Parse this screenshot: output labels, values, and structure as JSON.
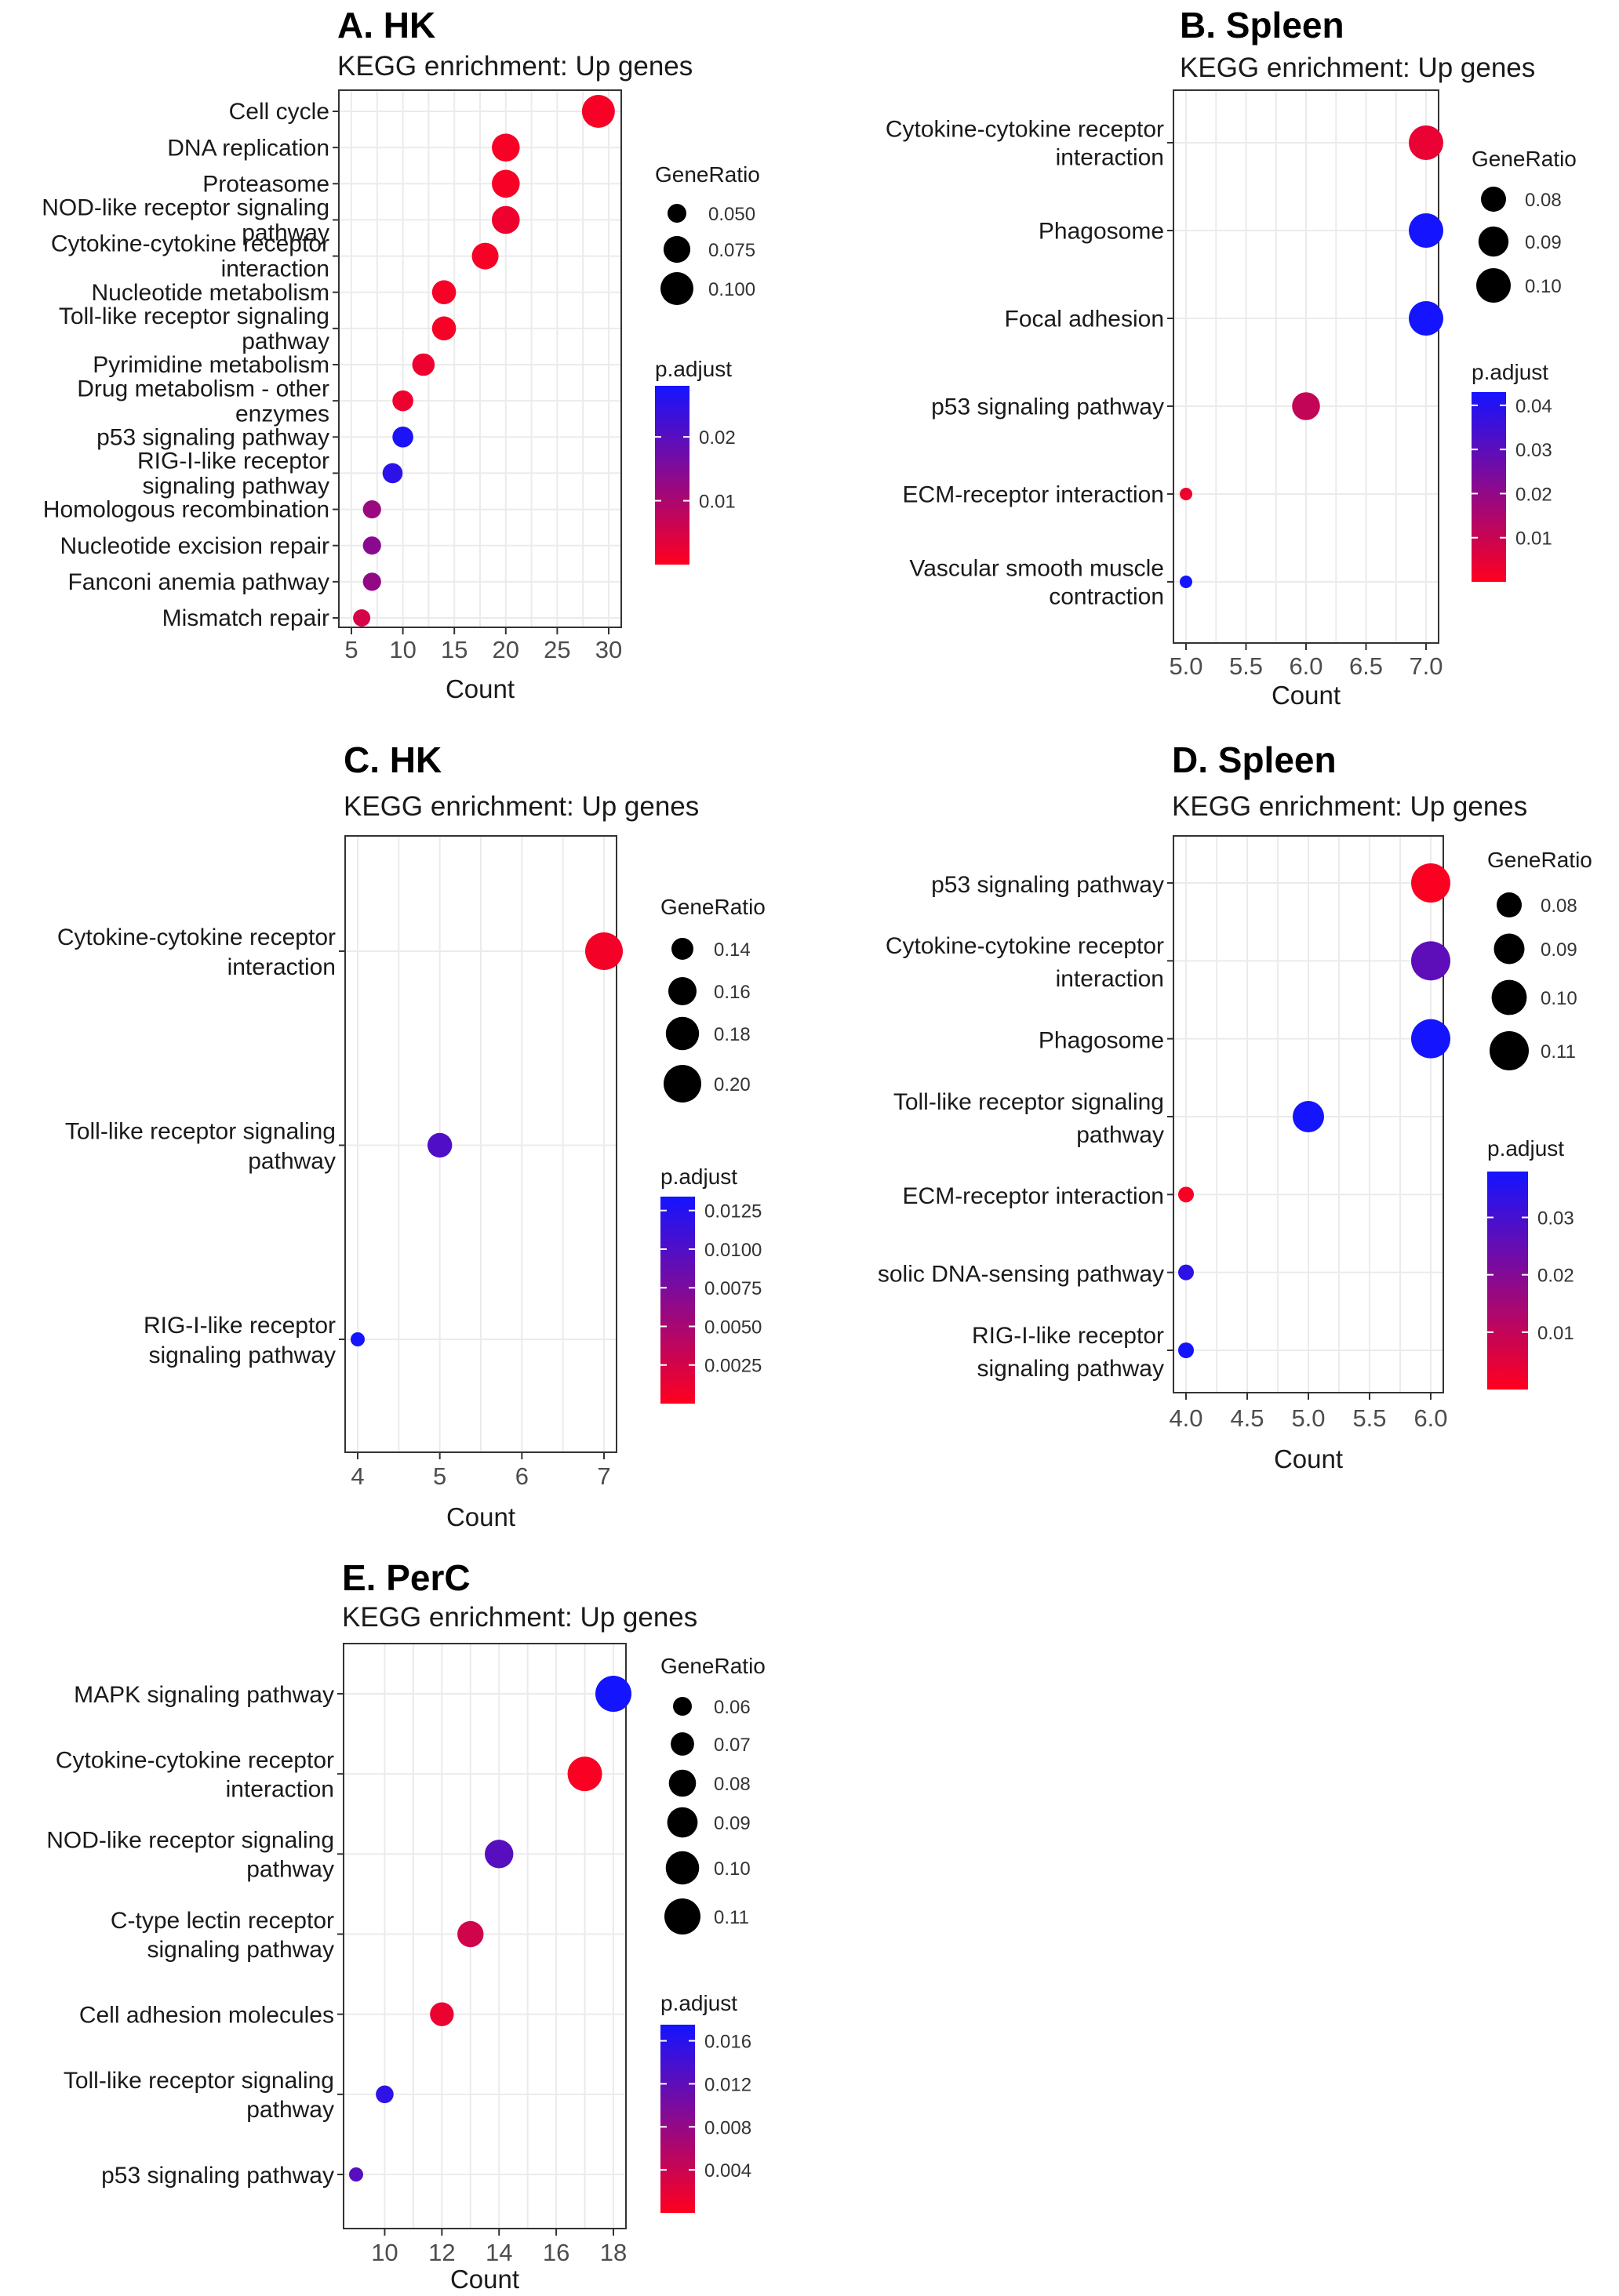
{
  "chart_data": [
    {
      "type": "scatter",
      "panel_label": "A. HK",
      "subtitle": "KEGG enrichment: Up genes",
      "xlabel": "Count",
      "xlim": [
        5,
        30
      ],
      "xticks": [
        "5",
        "10",
        "15",
        "20",
        "25",
        "30"
      ],
      "categories": [
        [
          "Cell cycle"
        ],
        [
          "DNA replication"
        ],
        [
          "Proteasome"
        ],
        [
          "NOD-like receptor signaling",
          "pathway"
        ],
        [
          "Cytokine-cytokine receptor",
          "interaction"
        ],
        [
          "Nucleotide metabolism"
        ],
        [
          "Toll-like receptor signaling",
          "pathway"
        ],
        [
          "Pyrimidine metabolism"
        ],
        [
          "Drug metabolism - other",
          "enzymes"
        ],
        [
          "p53 signaling pathway"
        ],
        [
          "RIG-I-like receptor",
          "signaling pathway"
        ],
        [
          "Homologous recombination"
        ],
        [
          "Nucleotide excision repair"
        ],
        [
          "Fanconi anemia pathway"
        ],
        [
          "Mismatch repair"
        ]
      ],
      "count": [
        29,
        20,
        20,
        20,
        18,
        14,
        14,
        12,
        10,
        10,
        9,
        7,
        7,
        7,
        6
      ],
      "gene_ratio": [
        0.115,
        0.08,
        0.08,
        0.08,
        0.072,
        0.056,
        0.056,
        0.048,
        0.04,
        0.04,
        0.036,
        0.028,
        0.028,
        0.028,
        0.024
      ],
      "p_adjust": [
        0.001,
        0.001,
        0.001,
        0.002,
        0.001,
        0.001,
        0.001,
        0.002,
        0.002,
        0.027,
        0.025,
        0.012,
        0.014,
        0.013,
        0.005
      ],
      "size_legend": {
        "title": "GeneRatio",
        "values": [
          0.05,
          0.075,
          0.1
        ],
        "labels": [
          "0.050",
          "0.075",
          "0.100"
        ]
      },
      "color_legend": {
        "title": "p.adjust",
        "range": [
          0.0,
          0.028
        ],
        "ticks": [
          0.01,
          0.02
        ],
        "labels": [
          "0.01",
          "0.02"
        ]
      }
    },
    {
      "type": "scatter",
      "panel_label": "B. Spleen",
      "subtitle": "KEGG enrichment: Up genes",
      "xlabel": "Count",
      "xlim": [
        5,
        7
      ],
      "xticks": [
        "5.0",
        "5.5",
        "6.0",
        "6.5",
        "7.0"
      ],
      "categories": [
        [
          "Cytokine-cytokine receptor",
          "interaction"
        ],
        [
          "Phagosome"
        ],
        [
          "Focal adhesion"
        ],
        [
          "p53 signaling pathway"
        ],
        [
          "ECM-receptor interaction"
        ],
        [
          "Vascular smooth muscle",
          "contraction"
        ]
      ],
      "count": [
        7,
        7,
        7,
        6,
        5,
        5
      ],
      "gene_ratio": [
        0.1,
        0.1,
        0.1,
        0.09,
        0.075,
        0.075
      ],
      "p_adjust": [
        0.004,
        0.043,
        0.043,
        0.011,
        0.003,
        0.044
      ],
      "size_legend": {
        "title": "GeneRatio",
        "values": [
          0.08,
          0.09,
          0.1
        ],
        "labels": [
          "0.08",
          "0.09",
          "0.10"
        ]
      },
      "color_legend": {
        "title": "p.adjust",
        "range": [
          0.0,
          0.043
        ],
        "ticks": [
          0.01,
          0.02,
          0.03,
          0.04
        ],
        "labels": [
          "0.01",
          "0.02",
          "0.03",
          "0.04"
        ]
      }
    },
    {
      "type": "scatter",
      "panel_label": "C. HK",
      "subtitle": "KEGG enrichment: Up genes",
      "xlabel": "Count",
      "xlim": [
        4,
        7
      ],
      "xticks": [
        "4",
        "5",
        "6",
        "7"
      ],
      "categories": [
        [
          "Cytokine-cytokine receptor",
          "interaction"
        ],
        [
          "Toll-like receptor signaling",
          "pathway"
        ],
        [
          "RIG-I-like receptor",
          "signaling pathway"
        ]
      ],
      "count": [
        7,
        5,
        4
      ],
      "gene_ratio": [
        0.21,
        0.15,
        0.12
      ],
      "p_adjust": [
        0.0006,
        0.01,
        0.0134
      ],
      "size_legend": {
        "title": "GeneRatio",
        "values": [
          0.14,
          0.16,
          0.18,
          0.2
        ],
        "labels": [
          "0.14",
          "0.16",
          "0.18",
          "0.20"
        ]
      },
      "color_legend": {
        "title": "p.adjust",
        "range": [
          0.0,
          0.0134
        ],
        "ticks": [
          0.0025,
          0.005,
          0.0075,
          0.01,
          0.0125
        ],
        "labels": [
          "0.0025",
          "0.0050",
          "0.0075",
          "0.0100",
          "0.0125"
        ]
      }
    },
    {
      "type": "scatter",
      "panel_label": "D. Spleen",
      "subtitle": "KEGG enrichment: Up genes",
      "xlabel": "Count",
      "xlim": [
        4,
        6
      ],
      "xticks": [
        "4.0",
        "4.5",
        "5.0",
        "5.5",
        "6.0"
      ],
      "categories": [
        [
          "p53 signaling pathway"
        ],
        [
          "Cytokine-cytokine receptor",
          "interaction"
        ],
        [
          "Phagosome"
        ],
        [
          "Toll-like receptor signaling",
          "pathway"
        ],
        [
          "ECM-receptor interaction"
        ],
        [
          "solic DNA-sensing pathway"
        ],
        [
          "RIG-I-like receptor",
          "signaling pathway"
        ]
      ],
      "count": [
        6,
        6,
        6,
        5,
        4,
        4,
        4
      ],
      "gene_ratio": [
        0.11,
        0.11,
        0.11,
        0.095,
        0.075,
        0.075,
        0.075
      ],
      "p_adjust": [
        0.0005,
        0.026,
        0.038,
        0.038,
        0.001,
        0.034,
        0.038
      ],
      "size_legend": {
        "title": "GeneRatio",
        "values": [
          0.08,
          0.09,
          0.1,
          0.11
        ],
        "labels": [
          "0.08",
          "0.09",
          "0.10",
          "0.11"
        ]
      },
      "color_legend": {
        "title": "p.adjust",
        "range": [
          0.0,
          0.038
        ],
        "ticks": [
          0.01,
          0.02,
          0.03
        ],
        "labels": [
          "0.01",
          "0.02",
          "0.03"
        ]
      }
    },
    {
      "type": "scatter",
      "panel_label": "E. PerC",
      "subtitle": "KEGG enrichment: Up genes",
      "xlabel": "Count",
      "xlim": [
        9,
        18
      ],
      "xticks": [
        "10",
        "12",
        "14",
        "16",
        "18"
      ],
      "tick_values": [
        10,
        12,
        14,
        16,
        18
      ],
      "categories": [
        [
          "MAPK signaling pathway"
        ],
        [
          "Cytokine-cytokine receptor",
          "interaction"
        ],
        [
          "NOD-like receptor signaling",
          "pathway"
        ],
        [
          "C-type lectin receptor",
          "signaling pathway"
        ],
        [
          "Cell adhesion molecules"
        ],
        [
          "Toll-like receptor signaling",
          "pathway"
        ],
        [
          "p53 signaling pathway"
        ]
      ],
      "count": [
        18,
        17,
        14,
        13,
        12,
        10,
        9
      ],
      "gene_ratio": [
        0.115,
        0.109,
        0.09,
        0.083,
        0.077,
        0.064,
        0.058
      ],
      "p_adjust": [
        0.0175,
        0.0004,
        0.0125,
        0.0035,
        0.0015,
        0.0155,
        0.0125
      ],
      "size_legend": {
        "title": "GeneRatio",
        "values": [
          0.06,
          0.07,
          0.08,
          0.09,
          0.1,
          0.11
        ],
        "labels": [
          "0.06",
          "0.07",
          "0.08",
          "0.09",
          "0.10",
          "0.11"
        ]
      },
      "color_legend": {
        "title": "p.adjust",
        "range": [
          0.0,
          0.0175
        ],
        "ticks": [
          0.004,
          0.008,
          0.012,
          0.016
        ],
        "labels": [
          "0.004",
          "0.008",
          "0.012",
          "0.016"
        ]
      }
    }
  ],
  "colors": {
    "low": "#ff0000",
    "high": "#0000ff",
    "text": "#1a1a1a",
    "grid": "#ebebeb"
  }
}
